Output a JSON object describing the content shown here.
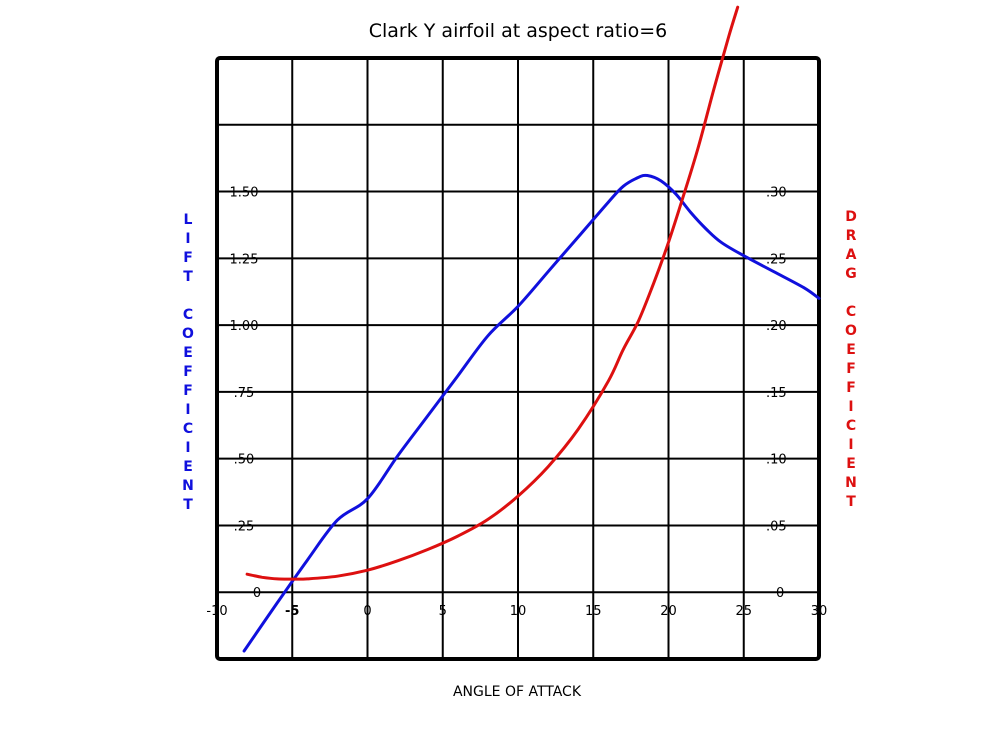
{
  "chart_data": {
    "type": "line",
    "title": "Clark Y airfoil at aspect ratio=6",
    "xlabel": "ANGLE OF ATTACK",
    "ylabel_left": "LIFT COEFFICIENT",
    "ylabel_right": "DRAG COEFFICIENT",
    "xlim": [
      -10,
      30
    ],
    "ylim_left": [
      -0.25,
      2.0
    ],
    "ylim_right": [
      -0.05,
      0.4
    ],
    "x_ticks": [
      -10,
      -5,
      0,
      5,
      10,
      15,
      20,
      25,
      30
    ],
    "x_tick_labels": [
      "-10",
      "-5",
      "0",
      "5",
      "10",
      "15",
      "20",
      "25",
      "30"
    ],
    "y_left_ticks": [
      0,
      0.25,
      0.5,
      0.75,
      1.0,
      1.25,
      1.5
    ],
    "y_left_tick_labels": [
      "0",
      ".25",
      ".50",
      ".75",
      "1.00",
      "1.25",
      "1.50"
    ],
    "y_right_ticks": [
      0,
      0.05,
      0.1,
      0.15,
      0.2,
      0.25,
      0.3
    ],
    "y_right_tick_labels": [
      "0",
      ".05",
      ".10",
      ".15",
      ".20",
      ".25",
      ".30"
    ],
    "grid": true,
    "colors": {
      "lift": "#1010dd",
      "drag": "#dd1010",
      "grid": "#000000"
    },
    "series": [
      {
        "axis": "left",
        "color": "#1010dd",
        "x": [
          -8.2,
          -6,
          -4,
          -2,
          0,
          2,
          4,
          6,
          8,
          10,
          12,
          14,
          16,
          17,
          18,
          18.6,
          19.5,
          20.5,
          21.5,
          22.5,
          23.5,
          25,
          27,
          29,
          30
        ],
        "y": [
          -0.22,
          -0.04,
          0.12,
          0.27,
          0.35,
          0.51,
          0.66,
          0.81,
          0.96,
          1.07,
          1.2,
          1.33,
          1.46,
          1.52,
          1.553,
          1.56,
          1.54,
          1.49,
          1.42,
          1.36,
          1.31,
          1.26,
          1.2,
          1.14,
          1.1
        ]
      },
      {
        "axis": "right",
        "color": "#dd1010",
        "x": [
          -8,
          -7,
          -6,
          -5,
          -4,
          -2,
          0,
          2,
          4,
          6,
          8,
          10,
          12,
          14,
          16,
          17,
          18,
          19,
          20,
          21,
          22,
          23,
          24,
          24.6
        ],
        "y": [
          0.0135,
          0.0112,
          0.01,
          0.0098,
          0.01,
          0.012,
          0.0165,
          0.0235,
          0.032,
          0.042,
          0.0545,
          0.072,
          0.094,
          0.122,
          0.158,
          0.182,
          0.203,
          0.231,
          0.262,
          0.297,
          0.334,
          0.376,
          0.416,
          0.438
        ]
      }
    ]
  }
}
